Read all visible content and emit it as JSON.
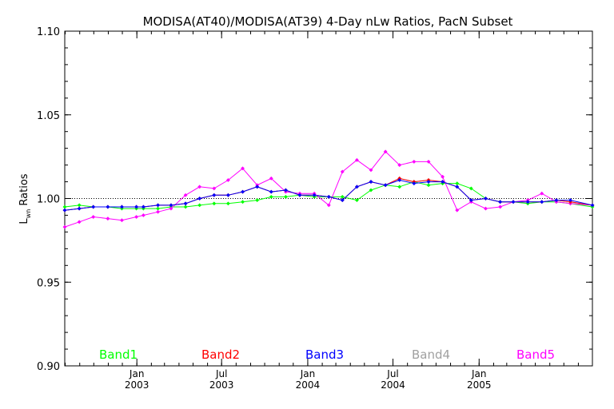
{
  "chart_data": {
    "type": "line",
    "title": "MODISA(AT40)/MODISA(AT39) 4-Day nLw Ratios, PacN Subset",
    "ylabel_main": "L",
    "ylabel_sub": "wn",
    "ylabel_rest": " Ratios",
    "xlabel": "",
    "ylim": [
      0.9,
      1.1
    ],
    "xlim": [
      "2002-07-31",
      "2005-08-31"
    ],
    "reference_line": 1.0,
    "grid": false,
    "y_ticks": [
      "0.90",
      "0.95",
      "1.00",
      "1.05",
      "1.10"
    ],
    "y_tick_values": [
      0.9,
      0.95,
      1.0,
      1.05,
      1.1
    ],
    "x_ticks": [
      {
        "date": "2003-01-01",
        "month": "Jan",
        "year": "2003"
      },
      {
        "date": "2003-07-01",
        "month": "Jul",
        "year": "2003"
      },
      {
        "date": "2004-01-01",
        "month": "Jan",
        "year": "2004"
      },
      {
        "date": "2004-07-01",
        "month": "Jul",
        "year": "2004"
      },
      {
        "date": "2005-01-01",
        "month": "Jan",
        "year": "2005"
      }
    ],
    "x": [
      "2002-07-31",
      "2002-08-31",
      "2002-09-30",
      "2002-10-31",
      "2002-11-30",
      "2002-12-31",
      "2003-01-15",
      "2003-02-15",
      "2003-03-15",
      "2003-04-15",
      "2003-05-15",
      "2003-06-15",
      "2003-07-15",
      "2003-08-15",
      "2003-09-15",
      "2003-10-15",
      "2003-11-15",
      "2003-12-15",
      "2004-01-15",
      "2004-02-15",
      "2004-03-15",
      "2004-04-15",
      "2004-05-15",
      "2004-06-15",
      "2004-07-15",
      "2004-08-15",
      "2004-09-15",
      "2004-10-15",
      "2004-11-15",
      "2004-12-15",
      "2005-01-15",
      "2005-02-15",
      "2005-03-15",
      "2005-04-15",
      "2005-05-15",
      "2005-06-15",
      "2005-07-15",
      "2005-08-31"
    ],
    "series": [
      {
        "name": "Band1",
        "color": "#00ff00",
        "values": [
          0.995,
          0.996,
          0.995,
          0.995,
          0.994,
          0.994,
          0.994,
          0.994,
          0.995,
          0.995,
          0.996,
          0.997,
          0.997,
          0.998,
          0.999,
          1.001,
          1.001,
          1.002,
          1.001,
          1.001,
          1.001,
          0.999,
          1.005,
          1.008,
          1.007,
          1.01,
          1.008,
          1.009,
          1.009,
          1.006,
          1.0,
          0.998,
          0.998,
          0.997,
          0.998,
          0.998,
          0.997,
          0.995
        ]
      },
      {
        "name": "Band2",
        "color": "#ff0000",
        "values": [
          0.993,
          0.994,
          0.995,
          0.995,
          0.995,
          0.995,
          0.995,
          0.996,
          0.996,
          0.997,
          1.0,
          1.002,
          1.002,
          1.004,
          1.007,
          1.004,
          1.005,
          1.002,
          1.002,
          1.001,
          0.999,
          1.007,
          1.01,
          1.008,
          1.012,
          1.01,
          1.011,
          1.01,
          1.007,
          0.999,
          1.0,
          0.998,
          0.998,
          0.998,
          0.998,
          0.999,
          0.998,
          0.996
        ]
      },
      {
        "name": "Band3",
        "color": "#0000ff",
        "values": [
          0.993,
          0.994,
          0.995,
          0.995,
          0.995,
          0.995,
          0.995,
          0.996,
          0.996,
          0.997,
          1.0,
          1.002,
          1.002,
          1.004,
          1.007,
          1.004,
          1.005,
          1.002,
          1.002,
          1.001,
          0.999,
          1.007,
          1.01,
          1.008,
          1.011,
          1.009,
          1.01,
          1.01,
          1.007,
          0.999,
          1.0,
          0.998,
          0.998,
          0.998,
          0.998,
          0.999,
          0.999,
          0.996
        ]
      },
      {
        "name": "Band4",
        "color": "#a0a0a0",
        "values": [
          0.993,
          0.994,
          0.995,
          0.995,
          0.995,
          0.995,
          0.995,
          0.996,
          0.996,
          0.997,
          1.0,
          1.002,
          1.002,
          1.004,
          1.007,
          1.004,
          1.005,
          1.002,
          1.002,
          1.001,
          0.999,
          1.007,
          1.01,
          1.008,
          1.012,
          1.01,
          1.011,
          1.01,
          1.007,
          0.999,
          1.0,
          0.998,
          0.998,
          0.998,
          0.998,
          0.999,
          0.998,
          0.996
        ]
      },
      {
        "name": "Band5",
        "color": "#ff00ff",
        "values": [
          0.983,
          0.986,
          0.989,
          0.988,
          0.987,
          0.989,
          0.99,
          0.992,
          0.994,
          1.002,
          1.007,
          1.006,
          1.011,
          1.018,
          1.008,
          1.012,
          1.004,
          1.003,
          1.003,
          0.996,
          1.016,
          1.023,
          1.017,
          1.028,
          1.02,
          1.022,
          1.022,
          1.013,
          0.993,
          0.998,
          0.994,
          0.995,
          0.998,
          0.999,
          1.003,
          0.998,
          0.997,
          0.996
        ]
      }
    ],
    "legend": [
      "Band1",
      "Band2",
      "Band3",
      "Band4",
      "Band5"
    ],
    "legend_placement": "bottom"
  }
}
